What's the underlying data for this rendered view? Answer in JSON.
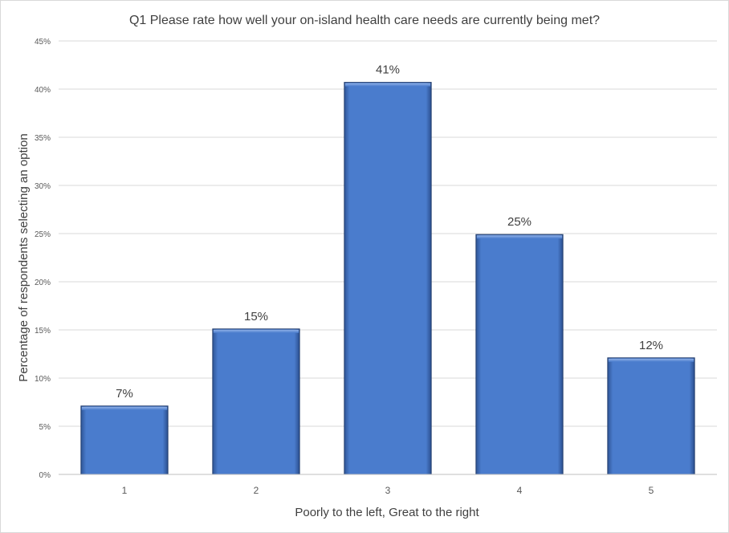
{
  "chart_data": {
    "type": "bar",
    "title": "Q1  Please rate how well your on-island health care needs are currently being met?",
    "xlabel": "Poorly to the left, Great to the right",
    "ylabel": "Percentage of respondents selecting an option",
    "categories": [
      "1",
      "2",
      "3",
      "4",
      "5"
    ],
    "values": [
      7.1,
      15.1,
      40.7,
      24.9,
      12.1
    ],
    "data_labels": [
      "7%",
      "15%",
      "41%",
      "25%",
      "12%"
    ],
    "ylim": [
      0,
      45
    ],
    "yticks": [
      0,
      5,
      10,
      15,
      20,
      25,
      30,
      35,
      40,
      45
    ],
    "ytick_labels": [
      "0%",
      "5%",
      "10%",
      "15%",
      "20%",
      "25%",
      "30%",
      "35%",
      "40%",
      "45%"
    ],
    "grid": true,
    "legend": "none",
    "bar_color": "#4a7ccd",
    "bar_edge_color": "#1f3a6b"
  }
}
